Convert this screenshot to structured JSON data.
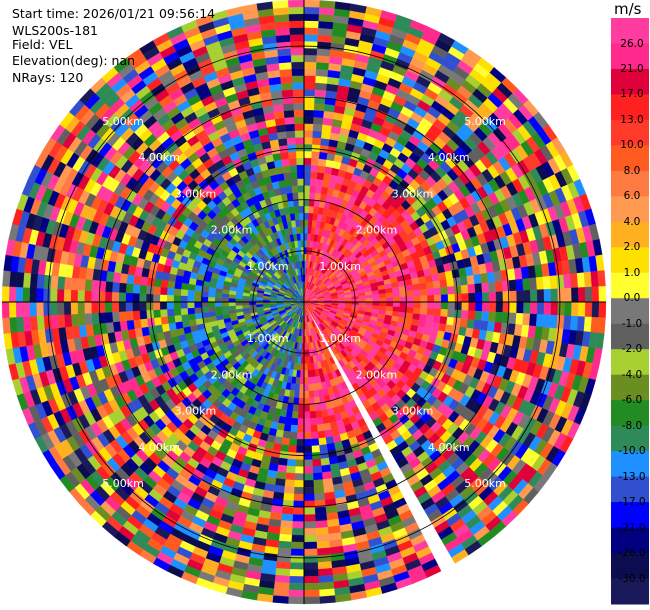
{
  "header": {
    "start_time": "Start time: 2026/01/21 09:56:14",
    "instrument": "WLS200s-181",
    "field": "Field: VEL",
    "elevation": "Elevation(deg): nan",
    "nrays": "NRays: 120"
  },
  "chart_data": {
    "type": "ppi",
    "field": "VEL",
    "nrays": 120,
    "range_rings_km": [
      1,
      2,
      3,
      4,
      5
    ],
    "range_ring_labels": [
      "1.00km",
      "2.00km",
      "3.00km",
      "4.00km",
      "5.00km"
    ],
    "ring_label_quadrants": [
      "upper-left",
      "upper-right",
      "lower-left",
      "lower-right"
    ],
    "blank_sector_deg": [
      150,
      153
    ],
    "colorbar": {
      "unit": "m/s",
      "ticks": [
        "26.0",
        "21.0",
        "17.0",
        "13.0",
        "10.0",
        "8.0",
        "6.0",
        "4.0",
        "2.0",
        "1.0",
        "0.0",
        "-1.0",
        "-2.0",
        "-4.0",
        "-6.0",
        "-8.0",
        "-10.0",
        "-13.0",
        "-17.0",
        "-21.0",
        "-26.0",
        "-30.0"
      ],
      "colors": [
        "#ff3ca0",
        "#ff2a8c",
        "#e0003a",
        "#ff2020",
        "#ff3a2a",
        "#ff5a20",
        "#ff7a40",
        "#ff9a50",
        "#ffb020",
        "#ffe000",
        "#ffff30",
        "#787878",
        "#606060",
        "#a8d030",
        "#6b8e23",
        "#228b22",
        "#2e8b57",
        "#1e90ff",
        "#3050d0",
        "#0000ff",
        "#000080",
        "#0c0c50",
        "#1a1a5a"
      ]
    }
  }
}
